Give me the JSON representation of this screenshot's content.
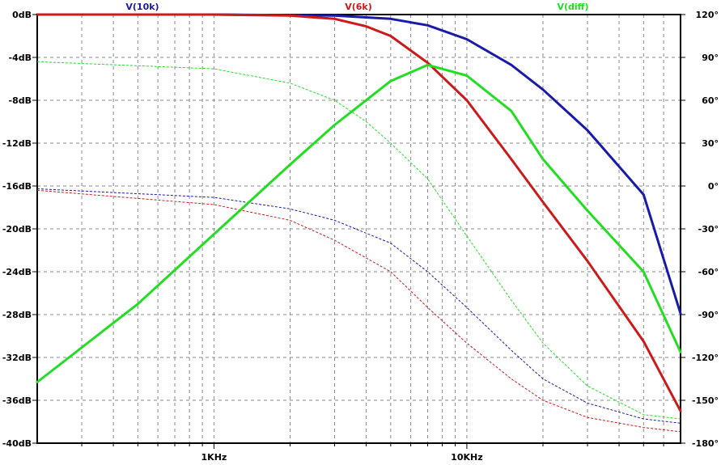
{
  "chart_data": {
    "type": "line",
    "x_scale": "log",
    "xlim": [
      200,
      70000
    ],
    "ylim_left": [
      -40,
      0
    ],
    "ylim_right": [
      -180,
      120
    ],
    "grid": true,
    "x_ticks": [
      {
        "value": 1000,
        "label": "1KHz"
      },
      {
        "value": 10000,
        "label": "10KHz"
      }
    ],
    "y_ticks_left": [
      {
        "value": 0,
        "label": "0dB"
      },
      {
        "value": -4,
        "label": "-4dB"
      },
      {
        "value": -8,
        "label": "-8dB"
      },
      {
        "value": -12,
        "label": "-12dB"
      },
      {
        "value": -16,
        "label": "-16dB"
      },
      {
        "value": -20,
        "label": "-20dB"
      },
      {
        "value": -24,
        "label": "-24dB"
      },
      {
        "value": -28,
        "label": "-28dB"
      },
      {
        "value": -32,
        "label": "-32dB"
      },
      {
        "value": -36,
        "label": "-36dB"
      },
      {
        "value": -40,
        "label": "-40dB"
      }
    ],
    "y_ticks_right": [
      {
        "value": 120,
        "label": "120°"
      },
      {
        "value": 90,
        "label": "90°"
      },
      {
        "value": 60,
        "label": "60°"
      },
      {
        "value": 30,
        "label": "30°"
      },
      {
        "value": 0,
        "label": "0°"
      },
      {
        "value": -30,
        "label": "-30°"
      },
      {
        "value": -60,
        "label": "-60°"
      },
      {
        "value": -90,
        "label": "-90°"
      },
      {
        "value": -120,
        "label": "-120°"
      },
      {
        "value": -150,
        "label": "-150°"
      },
      {
        "value": -180,
        "label": "-180°"
      }
    ],
    "legend": [
      {
        "label": "V(10k)",
        "color": "#1a1aaa"
      },
      {
        "label": "V(6k)",
        "color": "#cc1a1a"
      },
      {
        "label": "V(diff)",
        "color": "#22dd22"
      }
    ],
    "series": [
      {
        "name": "V(10k)",
        "color": "#1a1aaa",
        "magnitude_db": [
          [
            200,
            0
          ],
          [
            1000,
            0
          ],
          [
            3000,
            -0.1
          ],
          [
            5000,
            -0.4
          ],
          [
            7000,
            -1.0
          ],
          [
            10000,
            -2.3
          ],
          [
            15000,
            -4.7
          ],
          [
            20000,
            -7.0
          ],
          [
            30000,
            -10.8
          ],
          [
            50000,
            -16.8
          ],
          [
            70000,
            -27.9
          ]
        ],
        "phase_deg": [
          [
            200,
            -2
          ],
          [
            1000,
            -8
          ],
          [
            2000,
            -16
          ],
          [
            3000,
            -24
          ],
          [
            5000,
            -40
          ],
          [
            7000,
            -60
          ],
          [
            10000,
            -85
          ],
          [
            15000,
            -115
          ],
          [
            20000,
            -135
          ],
          [
            30000,
            -152
          ],
          [
            50000,
            -163
          ],
          [
            70000,
            -166
          ]
        ]
      },
      {
        "name": "V(6k)",
        "color": "#cc1a1a",
        "magnitude_db": [
          [
            200,
            0
          ],
          [
            1000,
            0
          ],
          [
            2000,
            -0.1
          ],
          [
            3000,
            -0.4
          ],
          [
            4000,
            -1.1
          ],
          [
            5000,
            -2.0
          ],
          [
            7000,
            -4.5
          ],
          [
            10000,
            -8.0
          ],
          [
            15000,
            -13.5
          ],
          [
            20000,
            -17.5
          ],
          [
            30000,
            -23.0
          ],
          [
            50000,
            -30.5
          ],
          [
            70000,
            -37.0
          ]
        ],
        "phase_deg": [
          [
            200,
            -3
          ],
          [
            1000,
            -13
          ],
          [
            2000,
            -24
          ],
          [
            3000,
            -38
          ],
          [
            5000,
            -60
          ],
          [
            7000,
            -85
          ],
          [
            10000,
            -110
          ],
          [
            15000,
            -135
          ],
          [
            20000,
            -150
          ],
          [
            30000,
            -162
          ],
          [
            50000,
            -169
          ],
          [
            70000,
            -172
          ]
        ]
      },
      {
        "name": "V(diff)",
        "color": "#22dd22",
        "magnitude_db": [
          [
            200,
            -34.3
          ],
          [
            500,
            -27.0
          ],
          [
            1000,
            -20.5
          ],
          [
            2000,
            -14.0
          ],
          [
            3000,
            -10.3
          ],
          [
            5000,
            -6.2
          ],
          [
            7000,
            -4.7
          ],
          [
            10000,
            -5.7
          ],
          [
            15000,
            -9.0
          ],
          [
            20000,
            -13.5
          ],
          [
            30000,
            -18.3
          ],
          [
            50000,
            -24.0
          ],
          [
            70000,
            -31.5
          ]
        ],
        "phase_deg": [
          [
            200,
            87
          ],
          [
            1000,
            82
          ],
          [
            2000,
            72
          ],
          [
            3000,
            60
          ],
          [
            4000,
            45
          ],
          [
            5000,
            30
          ],
          [
            7000,
            5
          ],
          [
            10000,
            -35
          ],
          [
            15000,
            -80
          ],
          [
            20000,
            -110
          ],
          [
            30000,
            -140
          ],
          [
            50000,
            -160
          ],
          [
            70000,
            -163
          ]
        ]
      }
    ]
  }
}
